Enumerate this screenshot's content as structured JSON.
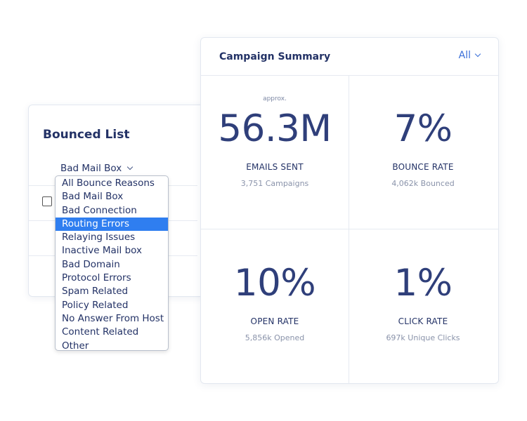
{
  "bounced_list": {
    "title": "Bounced List",
    "filter_value": "Bad Mail Box",
    "dropdown_options": [
      "All Bounce Reasons",
      "Bad Mail Box",
      "Bad Connection",
      "Routing Errors",
      "Relaying Issues",
      "Inactive Mail box",
      "Bad Domain",
      "Protocol Errors",
      "Spam Related",
      "Policy Related",
      "No Answer From Host",
      "Content Related",
      "Other"
    ],
    "highlighted_option": "Routing Errors"
  },
  "summary": {
    "title": "Campaign Summary",
    "range_value": "All",
    "metrics": [
      {
        "note": "approx.",
        "value": "56.3M",
        "label": "EMAILS SENT",
        "sub": "3,751 Campaigns"
      },
      {
        "note": "",
        "value": "7%",
        "label": "BOUNCE RATE",
        "sub": "4,062k Bounced"
      },
      {
        "note": "",
        "value": "10%",
        "label": "OPEN RATE",
        "sub": "5,856k Opened"
      },
      {
        "note": "",
        "value": "1%",
        "label": "CLICK RATE",
        "sub": "697k Unique Clicks"
      }
    ]
  },
  "colors": {
    "accent": "#2f7ef0",
    "navy": "#233266",
    "link": "#3a6fd8"
  }
}
